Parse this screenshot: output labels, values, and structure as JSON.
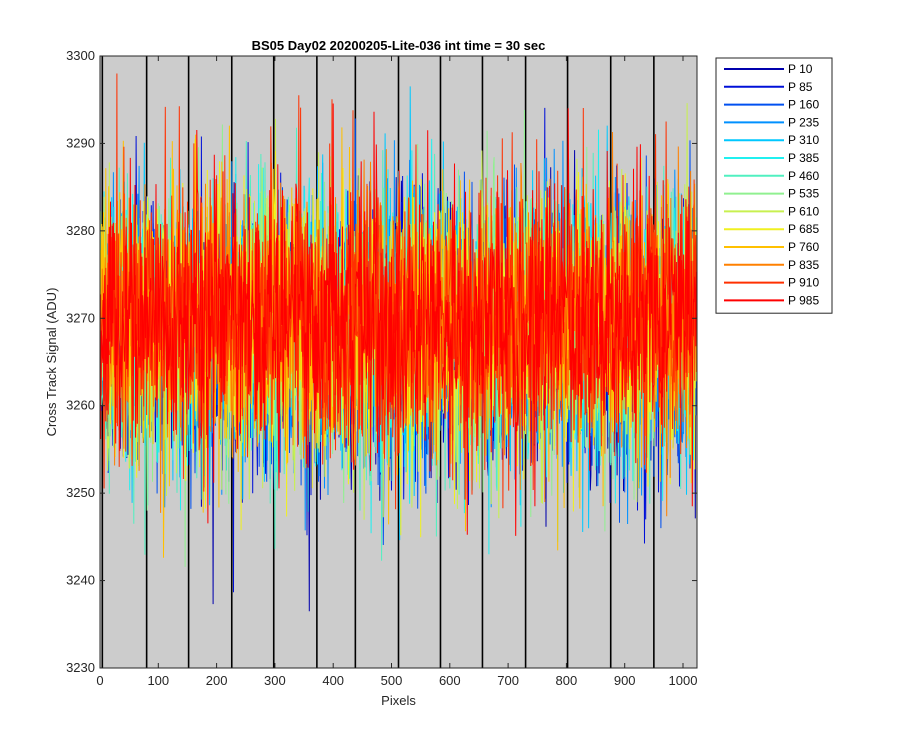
{
  "chart_data": {
    "type": "line",
    "title": "BS05 Day02 20200205-Lite-036 int time = 30 sec",
    "xlabel": "Pixels",
    "ylabel": "Cross Track Signal (ADU)",
    "xlim": [
      0,
      1024
    ],
    "ylim": [
      3230,
      3300
    ],
    "xticks": [
      0,
      100,
      200,
      300,
      400,
      500,
      600,
      700,
      800,
      900,
      1000
    ],
    "yticks": [
      3230,
      3240,
      3250,
      3260,
      3270,
      3280,
      3290,
      3300
    ],
    "background": "#cccccc",
    "vertical_lines_x": [
      4,
      80,
      152,
      226,
      298,
      372,
      438,
      512,
      584,
      656,
      730,
      802,
      876,
      950
    ],
    "legend_position": "outside-top-right",
    "noise": {
      "mean": 3269,
      "std": 8,
      "points_per_series": 1024
    },
    "series": [
      {
        "name": "P 10",
        "color": "#0000ad",
        "mean": 3268
      },
      {
        "name": "P 85",
        "color": "#0010d8",
        "mean": 3268
      },
      {
        "name": "P 160",
        "color": "#0050f0",
        "mean": 3268.5
      },
      {
        "name": "P 235",
        "color": "#0090ff",
        "mean": 3268.5
      },
      {
        "name": "P 310",
        "color": "#00c8ff",
        "mean": 3269
      },
      {
        "name": "P 385",
        "color": "#20f0f0",
        "mean": 3269
      },
      {
        "name": "P 460",
        "color": "#50f0c0",
        "mean": 3269
      },
      {
        "name": "P 535",
        "color": "#90f090",
        "mean": 3269
      },
      {
        "name": "P 610",
        "color": "#c8f050",
        "mean": 3269.5
      },
      {
        "name": "P 685",
        "color": "#f0f020",
        "mean": 3269.5
      },
      {
        "name": "P 760",
        "color": "#ffc000",
        "mean": 3269.5
      },
      {
        "name": "P 835",
        "color": "#ff8000",
        "mean": 3270
      },
      {
        "name": "P 910",
        "color": "#ff3000",
        "mean": 3270
      },
      {
        "name": "P 985",
        "color": "#ff0000",
        "mean": 3270
      }
    ]
  }
}
